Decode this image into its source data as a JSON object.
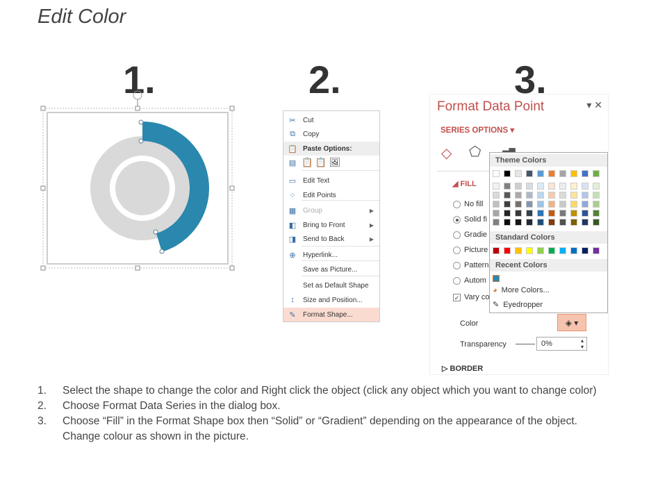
{
  "title": "Edit Color",
  "steps": [
    "1.",
    "2.",
    "3."
  ],
  "chart": {
    "accent": "#2a87ad",
    "ring": "#d9d9d9"
  },
  "menu": {
    "items": [
      {
        "label": "Cut",
        "icon": "scissors-icon",
        "disabled": false,
        "sub": false
      },
      {
        "label": "Copy",
        "icon": "copy-icon",
        "disabled": false,
        "sub": false
      },
      {
        "label": "Paste Options:",
        "icon": "paste-icon",
        "disabled": false,
        "sub": false
      },
      {
        "label": "",
        "icon": "paste-options-icon",
        "disabled": false,
        "sub": false
      },
      {
        "label": "Edit Text",
        "icon": "edit-text-icon",
        "disabled": false,
        "sub": false
      },
      {
        "label": "Edit Points",
        "icon": "edit-points-icon",
        "disabled": false,
        "sub": false
      },
      {
        "label": "Group",
        "icon": "group-icon",
        "disabled": true,
        "sub": true
      },
      {
        "label": "Bring to Front",
        "icon": "bring-front-icon",
        "disabled": false,
        "sub": true
      },
      {
        "label": "Send to Back",
        "icon": "send-back-icon",
        "disabled": false,
        "sub": true
      },
      {
        "label": "Hyperlink...",
        "icon": "hyperlink-icon",
        "disabled": false,
        "sub": false
      },
      {
        "label": "Save as Picture...",
        "icon": "",
        "disabled": false,
        "sub": false
      },
      {
        "label": "Set as Default Shape",
        "icon": "",
        "disabled": false,
        "sub": false
      },
      {
        "label": "Size and Position...",
        "icon": "size-position-icon",
        "disabled": false,
        "sub": false
      },
      {
        "label": "Format Shape...",
        "icon": "format-shape-icon",
        "disabled": false,
        "sub": false
      }
    ]
  },
  "panel": {
    "title": "Format Data Point",
    "series_options": "SERIES OPTIONS",
    "fill": "FILL",
    "radios": [
      "No fill",
      "Solid fi",
      "Gradie",
      "Picture",
      "Pattern",
      "Autom"
    ],
    "vary": "Vary co",
    "color_label": "Color",
    "transparency_label": "Transparency",
    "transparency_value": "0%",
    "border": "BORDER"
  },
  "picker": {
    "theme_label": "Theme Colors",
    "standard_label": "Standard Colors",
    "recent_label": "Recent Colors",
    "more_colors": "More Colors...",
    "eyedropper": "Eyedropper",
    "theme": [
      "#ffffff",
      "#000000",
      "#e7e6e6",
      "#44546a",
      "#5b9bd5",
      "#ed7d31",
      "#a5a5a5",
      "#ffc000",
      "#4472c4",
      "#70ad47"
    ],
    "shades": [
      [
        "#f2f2f2",
        "#d9d9d9",
        "#bfbfbf",
        "#a6a6a6",
        "#808080"
      ],
      [
        "#808080",
        "#595959",
        "#404040",
        "#262626",
        "#0d0d0d"
      ],
      [
        "#d0cece",
        "#aeaaaa",
        "#757171",
        "#3a3838",
        "#171616"
      ],
      [
        "#d6dce4",
        "#adb9ca",
        "#8496b0",
        "#333f4f",
        "#222a35"
      ],
      [
        "#deebf6",
        "#bdd7ee",
        "#9dc3e6",
        "#2e75b5",
        "#1f4e79"
      ],
      [
        "#fbe5d5",
        "#f7cbac",
        "#f4b183",
        "#c55a11",
        "#843c0b"
      ],
      [
        "#ededed",
        "#dbdbdb",
        "#c9c9c9",
        "#7b7b7b",
        "#525252"
      ],
      [
        "#fff2cc",
        "#fee599",
        "#ffd965",
        "#bf9000",
        "#7f6000"
      ],
      [
        "#d9e2f3",
        "#b4c6e7",
        "#8eaadb",
        "#2f5496",
        "#1f3864"
      ],
      [
        "#e2efd9",
        "#c5e0b3",
        "#a8d08d",
        "#538135",
        "#375623"
      ]
    ],
    "standard": [
      "#c00000",
      "#ff0000",
      "#ffc000",
      "#ffff00",
      "#92d050",
      "#00b050",
      "#00b0f0",
      "#0070c0",
      "#002060",
      "#7030a0"
    ],
    "recent": [
      "#2a87ad"
    ]
  },
  "instructions": [
    {
      "n": "1.",
      "text": "Select the shape to change the color and Right click the object (click any object which you want to change color)"
    },
    {
      "n": "2.",
      "text": "Choose Format Data Series in the dialog box."
    },
    {
      "n": "3.",
      "text": "Choose “Fill” in the Format Shape box then “Solid” or “Gradient” depending on the appearance of the object. Change colour as shown in the picture."
    }
  ]
}
